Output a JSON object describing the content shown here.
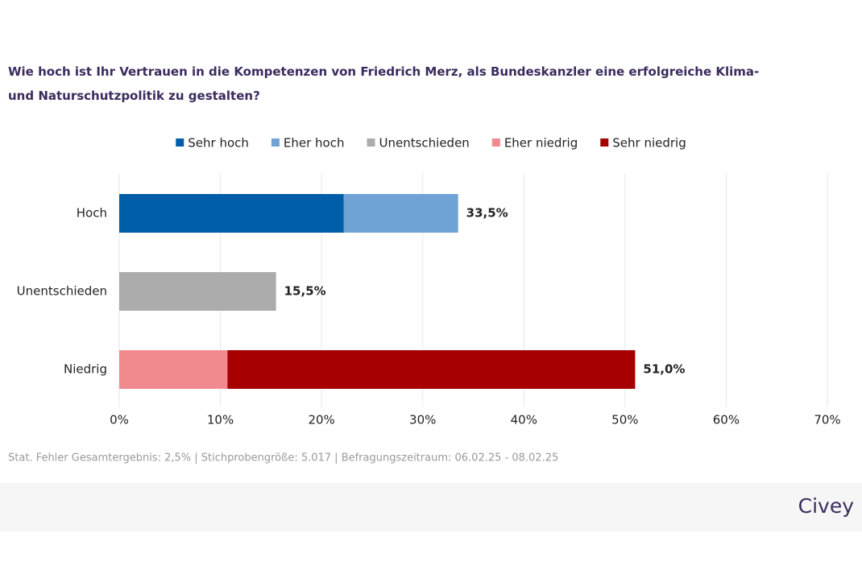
{
  "chart_data": {
    "type": "stacked-bar-horizontal",
    "title": "Wie hoch ist Ihr Vertrauen in die Kompetenzen von Friedrich Merz, als Bundeskanzler eine erfolgreiche Klima- und Naturschutzpolitik zu gestalten?",
    "categories": [
      "Hoch",
      "Unentschieden",
      "Niedrig"
    ],
    "series": [
      {
        "name": "Sehr hoch",
        "color": "#005ea8",
        "values": [
          22.2,
          null,
          null
        ]
      },
      {
        "name": "Eher hoch",
        "color": "#6fa3d6",
        "values": [
          11.3,
          null,
          null
        ]
      },
      {
        "name": "Unentschieden",
        "color": "#acacac",
        "values": [
          null,
          15.5,
          null
        ]
      },
      {
        "name": "Eher niedrig",
        "color": "#f08a8e",
        "values": [
          null,
          null,
          10.7
        ]
      },
      {
        "name": "Sehr niedrig",
        "color": "#a60000",
        "values": [
          null,
          null,
          40.3
        ]
      }
    ],
    "totals": [
      33.5,
      15.5,
      51.0
    ],
    "value_labels": [
      "33,5%",
      "15,5%",
      "51,0%"
    ],
    "xlim": [
      0,
      70
    ],
    "xticks": [
      {
        "value": 0,
        "label": "0%"
      },
      {
        "value": 10,
        "label": "10%"
      },
      {
        "value": 20,
        "label": "20%"
      },
      {
        "value": 30,
        "label": "30%"
      },
      {
        "value": 40,
        "label": "40%"
      },
      {
        "value": 50,
        "label": "50%"
      },
      {
        "value": 60,
        "label": "60%"
      },
      {
        "value": 70,
        "label": "70%"
      }
    ],
    "grid": true,
    "footnote": "Stat. Fehler Gesamtergebnis: 2,5% | Stichprobengröße: 5.017 | Befragungszeitraum: 06.02.25 - 08.02.25",
    "brand": "Civey"
  }
}
